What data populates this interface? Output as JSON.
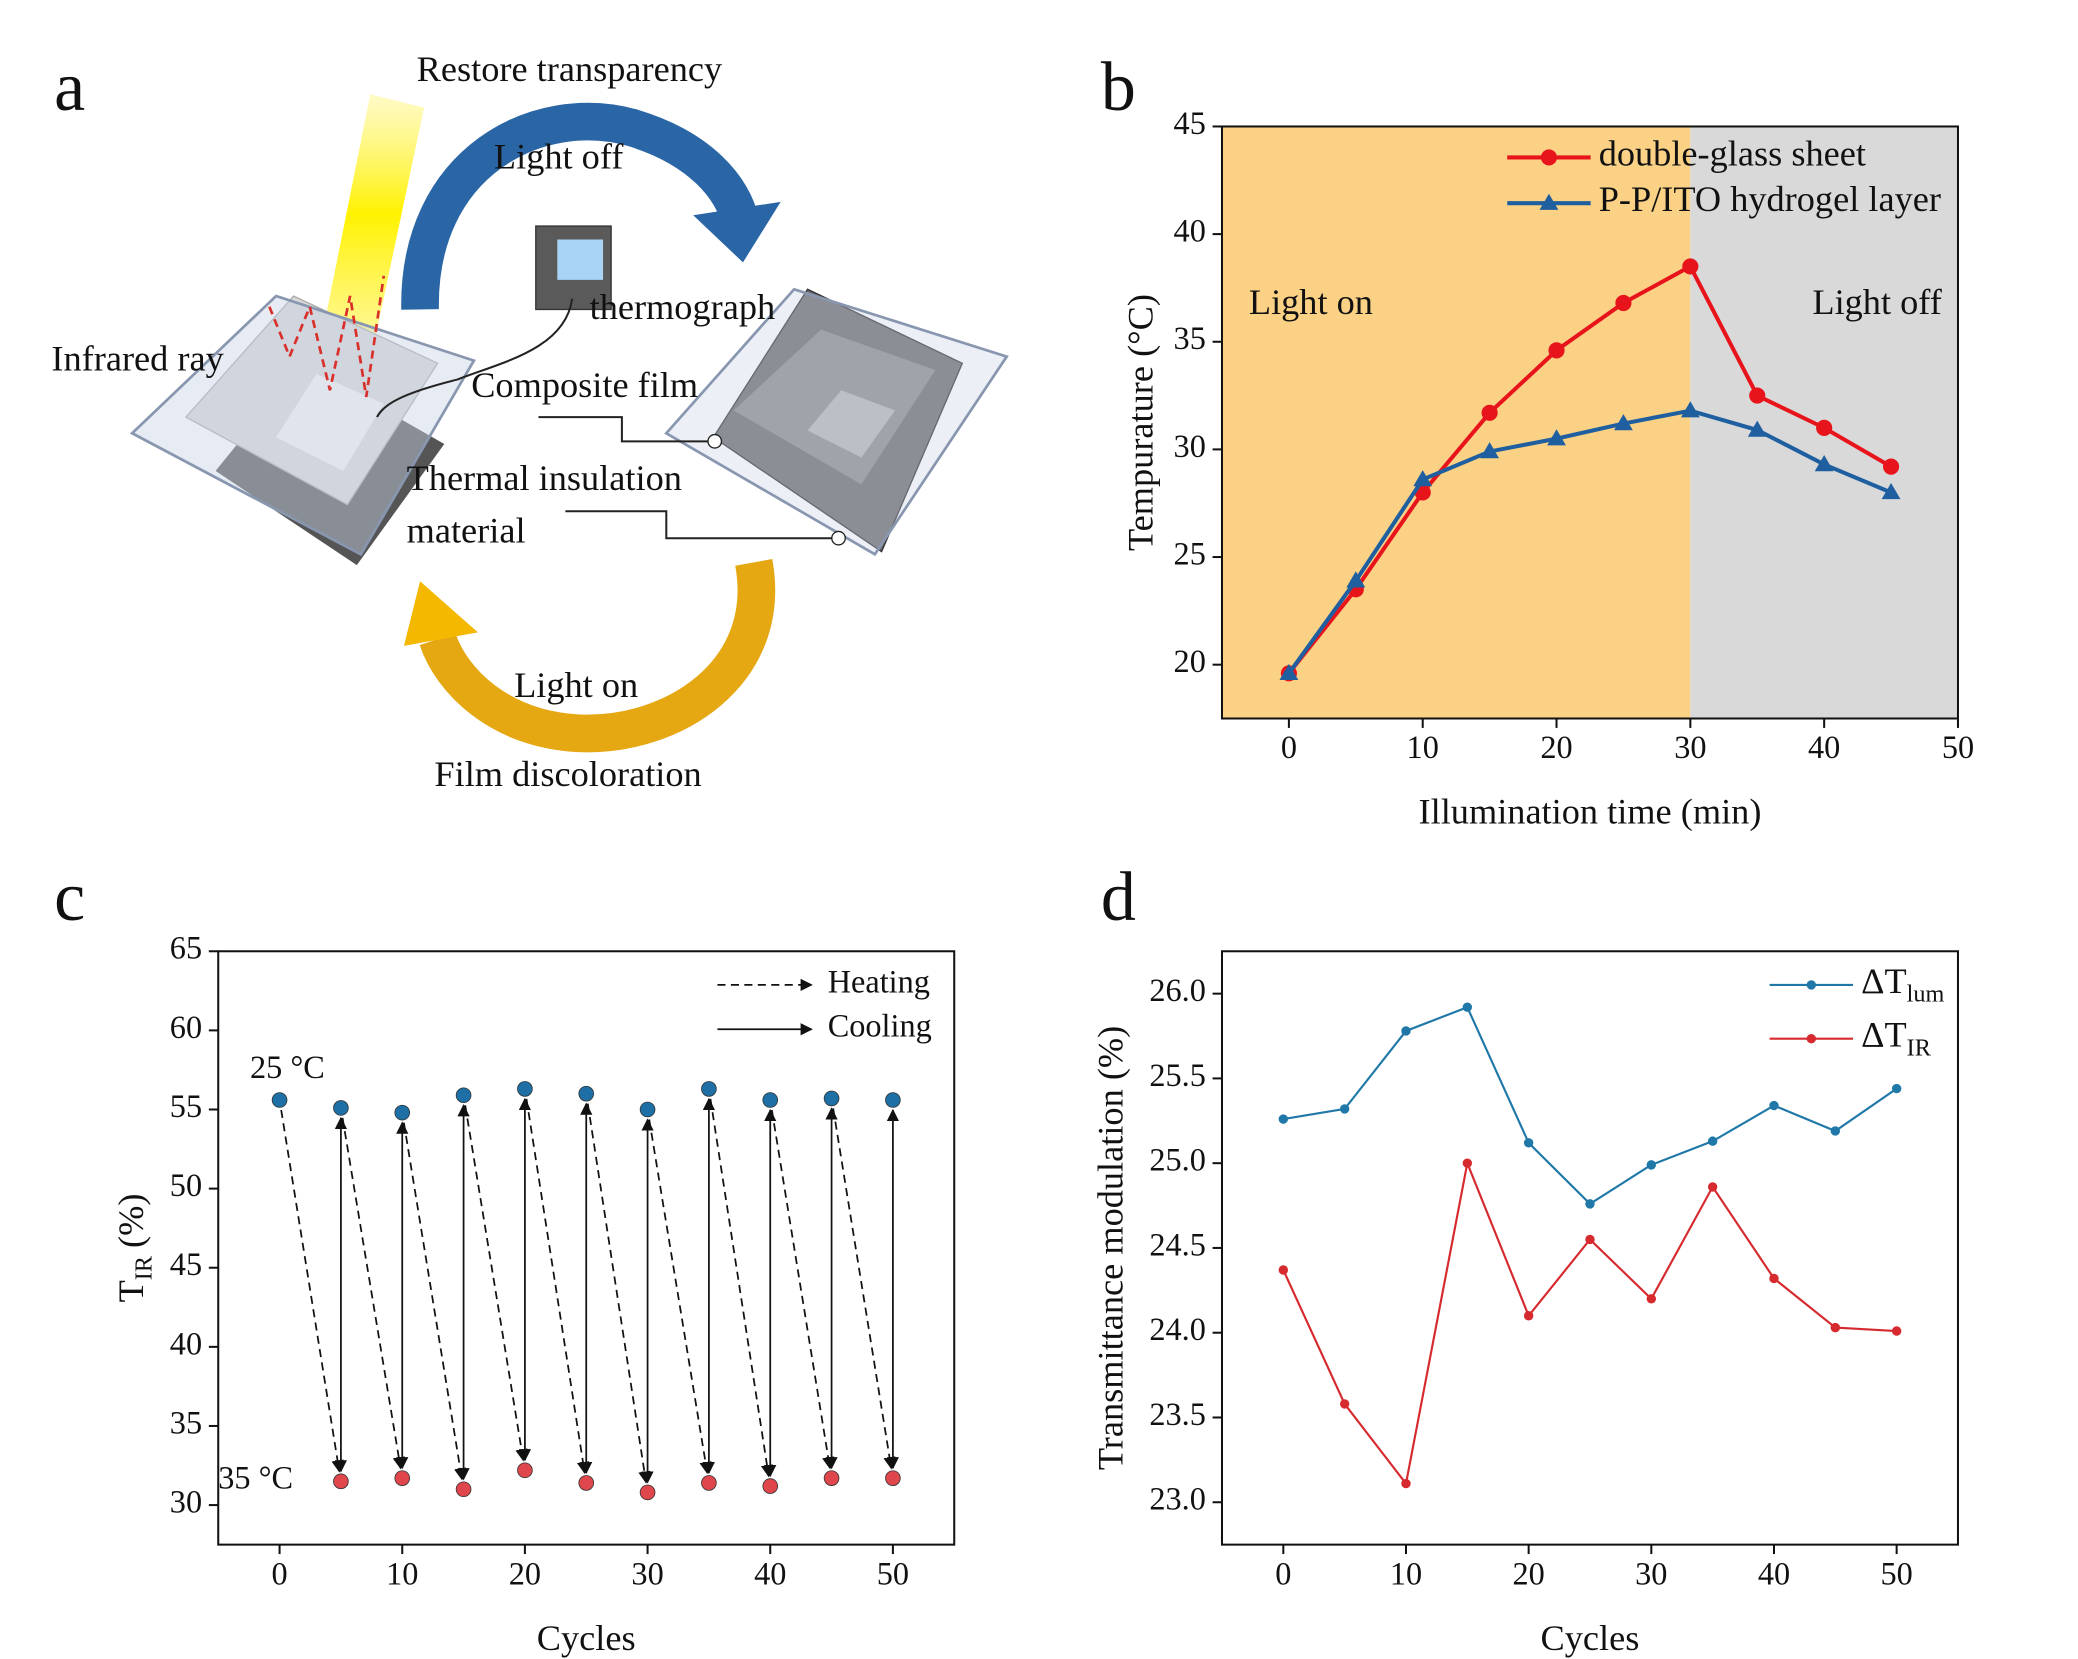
{
  "diagram": {
    "panel_label": "a",
    "labels": {
      "restore": "Restore transparency",
      "light_off": "Light off",
      "thermograph": "thermograph",
      "infrared": "Infrared ray",
      "composite": "Composite film",
      "insulation_1": "Thermal insulation",
      "insulation_2": "material",
      "light_on": "Light on",
      "discoloration": "Film discoloration"
    }
  },
  "chart_data": [
    {
      "panel_label": "b",
      "type": "line",
      "x_label": "Illumination time (min)",
      "y_label": "Tempurature (°C)",
      "x": [
        0,
        5,
        10,
        15,
        20,
        25,
        30,
        35,
        40,
        45
      ],
      "series": [
        {
          "name": "double-glass sheet",
          "color": "#e8141b",
          "marker": "circle",
          "values": [
            19.6,
            23.5,
            28.0,
            31.7,
            34.6,
            36.8,
            38.5,
            32.5,
            31.0,
            29.2
          ]
        },
        {
          "name": "P-P/ITO hydrogel layer",
          "color": "#1f5fa0",
          "marker": "triangle",
          "values": [
            19.6,
            23.9,
            28.6,
            29.9,
            30.5,
            31.2,
            31.8,
            30.9,
            29.3,
            28.0
          ]
        }
      ],
      "xlim": [
        -5,
        50
      ],
      "ylim": [
        17.5,
        45
      ],
      "xticks": [
        0,
        10,
        20,
        30,
        40,
        50
      ],
      "yticks": [
        20,
        25,
        30,
        35,
        40,
        45
      ],
      "regions": [
        {
          "x": [
            -5,
            30
          ],
          "color": "#fbd285",
          "label": "Light on"
        },
        {
          "x": [
            30,
            50
          ],
          "color": "#d9d9d9",
          "label": "Light off"
        }
      ],
      "legend": "upper right"
    },
    {
      "panel_label": "c",
      "type": "scatter",
      "x_label": "Cycles",
      "y_label": {
        "text": "T",
        "sub": "IR",
        "unit": "(%)"
      },
      "series": [
        {
          "name": "25 °C",
          "color": "#1d6fa5",
          "x": [
            0,
            5,
            10,
            15,
            20,
            25,
            30,
            35,
            40,
            45,
            50
          ],
          "values": [
            55.6,
            55.1,
            54.8,
            55.9,
            56.3,
            56.0,
            55.0,
            56.3,
            55.6,
            55.7,
            55.6
          ]
        },
        {
          "name": "35 °C",
          "color": "#e0474c",
          "x": [
            5,
            10,
            15,
            20,
            25,
            30,
            35,
            40,
            45,
            50
          ],
          "values": [
            31.5,
            31.7,
            31.0,
            32.2,
            31.4,
            30.8,
            31.4,
            31.2,
            31.7,
            31.7
          ]
        }
      ],
      "arrows": [
        {
          "name": "Heating",
          "style": "dashed"
        },
        {
          "name": "Cooling",
          "style": "solid"
        }
      ],
      "xlim": [
        -5,
        55
      ],
      "ylim": [
        27.5,
        65
      ],
      "xticks": [
        0,
        10,
        20,
        30,
        40,
        50
      ],
      "yticks": [
        30,
        35,
        40,
        45,
        50,
        55,
        60,
        65
      ],
      "legend": "upper right"
    },
    {
      "panel_label": "d",
      "type": "line",
      "x_label": "Cycles",
      "y_label": "Transmittance modulation (%)",
      "x": [
        0,
        5,
        10,
        15,
        20,
        25,
        30,
        35,
        40,
        45,
        50
      ],
      "series": [
        {
          "name": "ΔT",
          "name_sub": "lum",
          "color": "#1f78a8",
          "marker": "small-circle",
          "values": [
            25.26,
            25.32,
            25.78,
            25.92,
            25.12,
            24.76,
            24.99,
            25.13,
            25.34,
            25.19,
            25.44
          ]
        },
        {
          "name": "ΔT",
          "name_sub": "IR",
          "color": "#d62a2f",
          "marker": "small-circle",
          "values": [
            24.37,
            23.58,
            23.11,
            25.0,
            24.1,
            24.55,
            24.2,
            24.86,
            24.32,
            24.03,
            24.01
          ]
        }
      ],
      "xlim": [
        -5,
        55
      ],
      "ylim": [
        22.75,
        26.25
      ],
      "xticks": [
        0,
        10,
        20,
        30,
        40,
        50
      ],
      "yticks": [
        {
          "value": 23,
          "label": "23.0"
        },
        {
          "value": 23.5,
          "label": "23.5"
        },
        {
          "value": 24,
          "label": "24.0"
        },
        {
          "value": 24.5,
          "label": "24.5"
        },
        {
          "value": 25,
          "label": "25.0"
        },
        {
          "value": 25.5,
          "label": "25.5"
        },
        {
          "value": 26,
          "label": "26.0"
        }
      ],
      "legend": "upper right"
    }
  ]
}
